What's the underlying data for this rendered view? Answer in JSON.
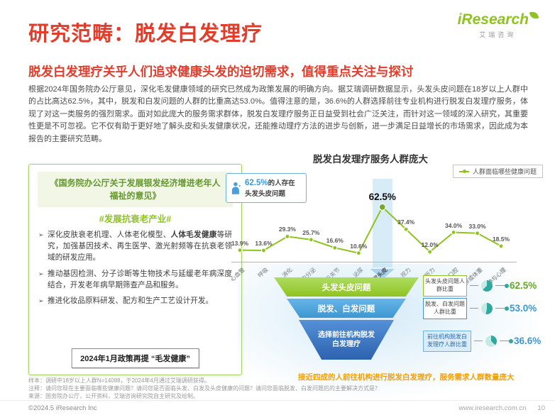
{
  "header": {
    "title": "研究范畴：脱发白发理疗",
    "subtitle": "脱发白发理疗关乎人们追求健康头发的迫切需求，值得重点关注与探讨",
    "logo_text": "iResearch",
    "logo_sub": "艾瑞咨询"
  },
  "intro_paragraph": "根据2024年国务院办公厅意见，深化毛发健康领域的研究已然成为政策发展的明确方向。据艾瑞调研数据显示，头发头皮问题在18岁以上人群中的占比高达62.5%，其中，脱发和白发问题的人群的比重高达53.0%。值得注意的是，36.6%的人群选择前往专业机构进行脱发白发理疗服务，体现了对这一类服务的强烈需求。面对如此庞大的服务需求群体，脱发白发理疗服务正日益受到社会广泛关注，而针对这一领域的深入研究，其重要性更是不可忽视。它不仅有助于更好地了解头皮和头发健康状况，还能推动理疗方法的进步与创新，进一步满足日益增长的市场需求，因此成为本报告的主要研究范畴。",
  "policy_panel": {
    "doc_title": "《国务院办公厅关于发展银发经济增进老年人福祉的意见》",
    "hashtag": "#发展抗衰老产业#",
    "bullets": [
      {
        "pre": "深化皮肤衰老机理、人体老化模型、",
        "bold": "人体毛发健康",
        "post": "等研究，加强基因技术、再生医学、激光射频等在抗衰老领域的研发应用。"
      },
      {
        "pre": "推动基因检测、分子诊断等生物技术与延缓老年病深度结合，开发老年病早期筛查产品和服务。",
        "bold": "",
        "post": ""
      },
      {
        "pre": "推进化妆品原料研发、配方和生产工艺设计开发。",
        "bold": "",
        "post": ""
      }
    ],
    "footer_note": "2024年1月政策再提 “毛发健康”"
  },
  "chart_data": {
    "type": "line",
    "title": "脱发白发理疗服务人群庞大",
    "legend_label": "人群面临哪些健康问题",
    "callout": {
      "pct": "62.5%",
      "text": "的人存在头发头皮问题"
    },
    "categories": [
      "心血管",
      "呼吸",
      "消化",
      "内分泌",
      "骨骼与关节",
      "泌尿",
      "头发头皮",
      "视力",
      "听力",
      "口腔",
      "肥胖或体重",
      "精神与心理"
    ],
    "values": [
      13.9,
      13.6,
      29.3,
      25.7,
      16.6,
      10.6,
      62.5,
      37.4,
      12.0,
      34.0,
      33.0,
      18.5
    ],
    "unit": "%",
    "highlight_index": 6,
    "ylim": [
      0,
      70
    ],
    "grid": false,
    "legend_position": "top-right"
  },
  "funnel": {
    "levels": [
      {
        "label": "头发头皮问题",
        "metric": "头发头皮问题人群比重",
        "value": "62.5%",
        "pct_num": 62.5
      },
      {
        "label": "脱发、白发问题",
        "metric": "脱发、白发问题人群比重",
        "value": "53.0%",
        "pct_num": 53.0
      },
      {
        "label": "选择前往机构脱发白发理疗",
        "metric": "前往机构脱发白发理疗人群比重",
        "value": "36.6%",
        "pct_num": 36.6
      }
    ],
    "conclusion": "接近四成的人前往机构进行脱发白发理疗，服务需求人群数量庞大"
  },
  "notes": {
    "sample": "样本：调研中18岁以上人群N=14088，于2024年4月通过艾瑞调研获得。",
    "annotation": "注释：请问您现在主要面临哪些健康问题？请问您是否面临头发、白发及头皮健康的问题？请问您面临脱发、白发问题后的主要解决方式是？",
    "source": "来源：国务院办公厅，公开资料，艾瑞咨询研究院自主研究及绘制。"
  },
  "footer": {
    "copyright": "©2024.5 iResearch Inc",
    "website": "www.iresearch.com.cn",
    "page": "10"
  }
}
